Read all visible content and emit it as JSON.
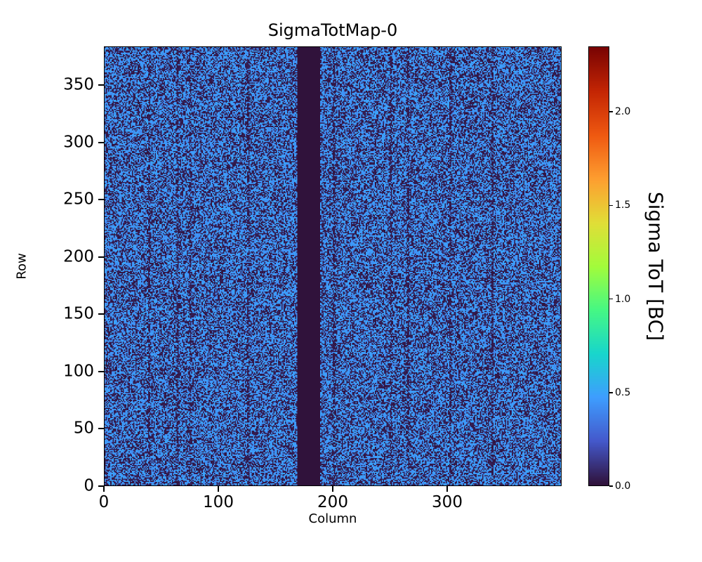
{
  "colors": {
    "background": "#ffffff",
    "text": "#000000",
    "axis": "#000000"
  },
  "chart_data": {
    "type": "heatmap",
    "title": "SigmaTotMap-0",
    "xlabel": "Column",
    "ylabel": "Row",
    "colorbar_label": "Sigma ToT [BC]",
    "n_columns": 400,
    "n_rows": 384,
    "xlim": [
      0,
      400
    ],
    "ylim": [
      0,
      384
    ],
    "x_ticks": [
      0,
      100,
      200,
      300
    ],
    "y_ticks": [
      0,
      50,
      100,
      150,
      200,
      250,
      300,
      350
    ],
    "colorbar_ticks": [
      "0.0",
      "0.5",
      "1.0",
      "1.5",
      "2.0"
    ],
    "vmin": 0.0,
    "vmax": 2.35,
    "grid": false,
    "colormap": "turbo",
    "colormap_stops": [
      {
        "t": 0.0,
        "color": "#30123b"
      },
      {
        "t": 0.1,
        "color": "#4459cc"
      },
      {
        "t": 0.2,
        "color": "#3e9eff"
      },
      {
        "t": 0.3,
        "color": "#18d6cc"
      },
      {
        "t": 0.4,
        "color": "#46f884"
      },
      {
        "t": 0.5,
        "color": "#a3fc3b"
      },
      {
        "t": 0.6,
        "color": "#e1de37"
      },
      {
        "t": 0.7,
        "color": "#fe9e30"
      },
      {
        "t": 0.8,
        "color": "#ef5911"
      },
      {
        "t": 0.9,
        "color": "#c42604"
      },
      {
        "t": 1.0,
        "color": "#7a0403"
      }
    ],
    "values": {
      "description": "Per-pixel sigma ToT map: salt-and-pepper noise where each pixel is either ~0 BC (dark) or ~0.45 BC (blue); a fully dead (0 BC) vertical column band and a few darker column streaks are visible.",
      "zero_fraction": 0.46,
      "noise_mean": 0.45,
      "noise_spread": 0.07,
      "dead_column_start": 169,
      "dead_column_end": 188,
      "dark_streak_columns": [
        38,
        63,
        74,
        125,
        200,
        250,
        265,
        302,
        339
      ],
      "streak_zero_fraction": 0.72,
      "random_seed": 1337
    }
  }
}
